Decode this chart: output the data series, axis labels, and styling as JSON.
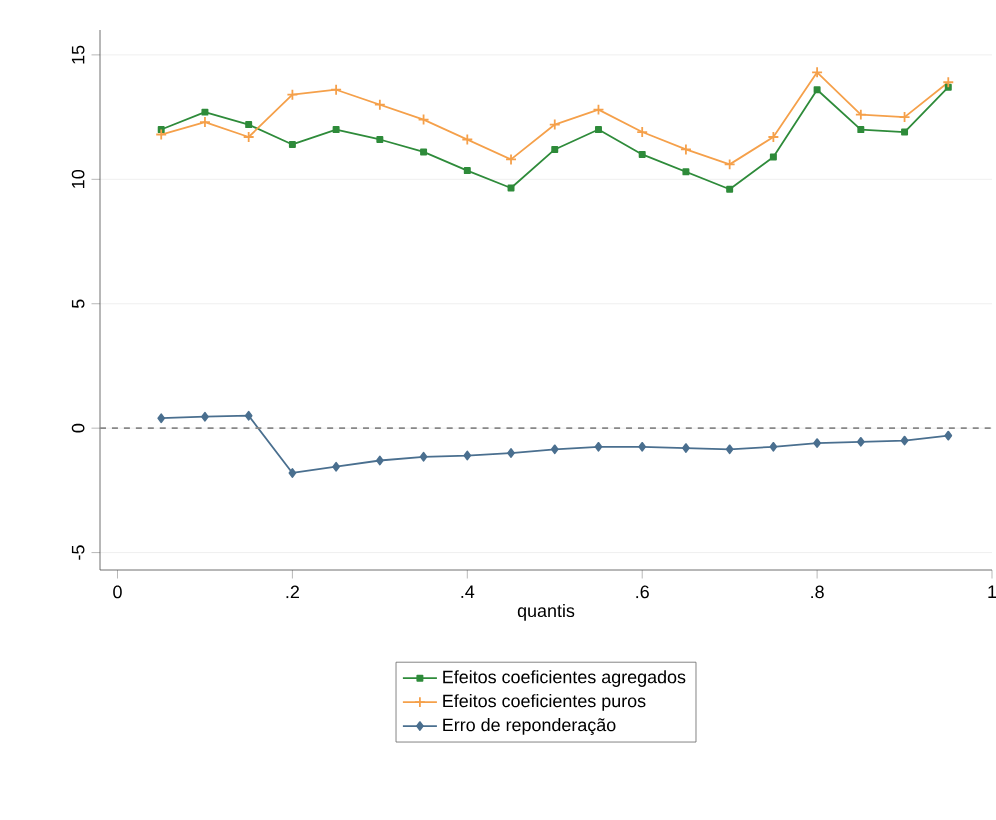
{
  "chart_data": {
    "type": "line",
    "xlabel": "quantis",
    "x": [
      0.05,
      0.1,
      0.15,
      0.2,
      0.25,
      0.3,
      0.35,
      0.4,
      0.45,
      0.5,
      0.55,
      0.6,
      0.65,
      0.7,
      0.75,
      0.8,
      0.85,
      0.9,
      0.95
    ],
    "series": [
      {
        "name": "Efeitos coeficientes agregados",
        "color": "#2e8b3a",
        "marker": "square",
        "values": [
          12.0,
          12.7,
          12.2,
          11.4,
          12.0,
          11.6,
          11.1,
          10.35,
          9.65,
          11.2,
          12.0,
          11.0,
          10.3,
          9.6,
          10.9,
          13.6,
          12.0,
          11.9,
          13.7
        ]
      },
      {
        "name": "Efeitos coeficientes puros",
        "color": "#f5a04a",
        "marker": "cross",
        "values": [
          11.8,
          12.3,
          11.7,
          13.4,
          13.6,
          13.0,
          12.4,
          11.6,
          10.8,
          12.2,
          12.8,
          11.9,
          11.2,
          10.6,
          11.7,
          14.3,
          12.6,
          12.5,
          13.9
        ]
      },
      {
        "name": "Erro de reponderação",
        "color": "#4a6f8f",
        "marker": "diamond",
        "values": [
          0.4,
          0.46,
          0.5,
          -1.8,
          -1.55,
          -1.3,
          -1.15,
          -1.1,
          -1.0,
          -0.85,
          -0.75,
          -0.75,
          -0.8,
          -0.85,
          -0.75,
          -0.6,
          -0.55,
          -0.5,
          -0.3
        ]
      }
    ],
    "xlim": [
      -0.02,
      1.0
    ],
    "ylim": [
      -5.7,
      16
    ],
    "xticks": [
      0,
      {
        "value": 0.2,
        "label": ".2"
      },
      {
        "value": 0.4,
        "label": ".4"
      },
      {
        "value": 0.6,
        "label": ".6"
      },
      {
        "value": 0.8,
        "label": ".8"
      },
      1
    ],
    "yticks": [
      -5,
      0,
      5,
      10,
      15
    ],
    "ref_lines": [
      {
        "axis": "y",
        "value": 0,
        "color": "#888888",
        "line_style": "dashed"
      }
    ],
    "grid": "y",
    "legend": "bottom",
    "line_style": "solid"
  }
}
